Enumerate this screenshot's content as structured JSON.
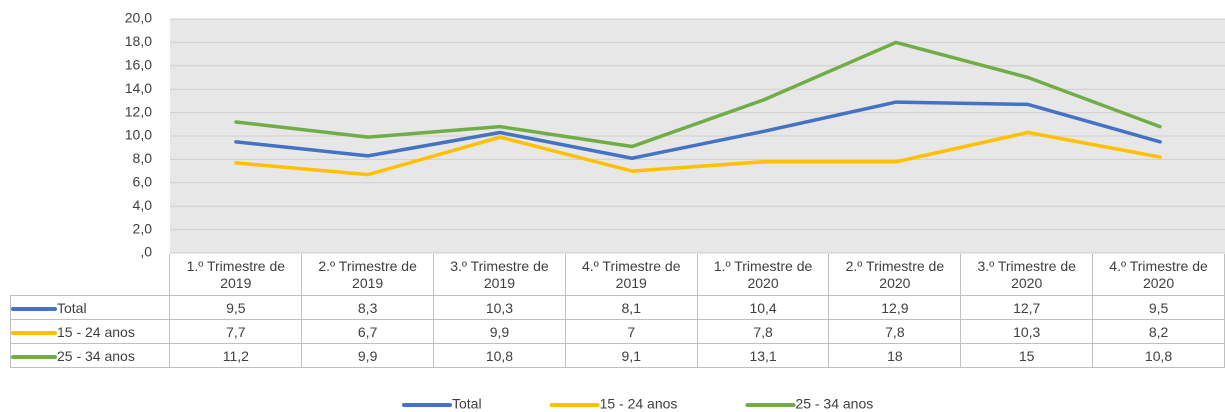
{
  "chart_data": {
    "type": "line",
    "categories": [
      "1.º Trimestre de 2019",
      "2.º Trimestre de 2019",
      "3.º Trimestre de 2019",
      "4.º Trimestre de 2019",
      "1.º Trimestre de 2020",
      "2.º Trimestre de 2020",
      "3.º Trimestre de 2020",
      "4.º Trimestre de 2020"
    ],
    "series": [
      {
        "name": "Total",
        "color": "#4472c4",
        "values": [
          9.5,
          8.3,
          10.3,
          8.1,
          10.4,
          12.9,
          12.7,
          9.5
        ],
        "value_labels": [
          "9,5",
          "8,3",
          "10,3",
          "8,1",
          "10,4",
          "12,9",
          "12,7",
          "9,5"
        ]
      },
      {
        "name": "15 - 24 anos",
        "color": "#ffc000",
        "values": [
          7.7,
          6.7,
          9.9,
          7,
          7.8,
          7.8,
          10.3,
          8.2
        ],
        "value_labels": [
          "7,7",
          "6,7",
          "9,9",
          "7",
          "7,8",
          "7,8",
          "10,3",
          "8,2"
        ]
      },
      {
        "name": "25 - 34 anos",
        "color": "#70ad47",
        "values": [
          11.2,
          9.9,
          10.8,
          9.1,
          13.1,
          18,
          15,
          10.8
        ],
        "value_labels": [
          "11,2",
          "9,9",
          "10,8",
          "9,1",
          "13,1",
          "18",
          "15",
          "10,8"
        ]
      }
    ],
    "ylim": [
      0,
      20
    ],
    "yticks": [
      {
        "value": 0,
        "label": ",0"
      },
      {
        "value": 2,
        "label": "2,0"
      },
      {
        "value": 4,
        "label": "4,0"
      },
      {
        "value": 6,
        "label": "6,0"
      },
      {
        "value": 8,
        "label": "8,0"
      },
      {
        "value": 10,
        "label": "10,0"
      },
      {
        "value": 12,
        "label": "12,0"
      },
      {
        "value": 14,
        "label": "14,0"
      },
      {
        "value": 16,
        "label": "16,0"
      },
      {
        "value": 18,
        "label": "18,0"
      },
      {
        "value": 20,
        "label": "20,0"
      }
    ],
    "grid": true,
    "legend": "bottom"
  }
}
